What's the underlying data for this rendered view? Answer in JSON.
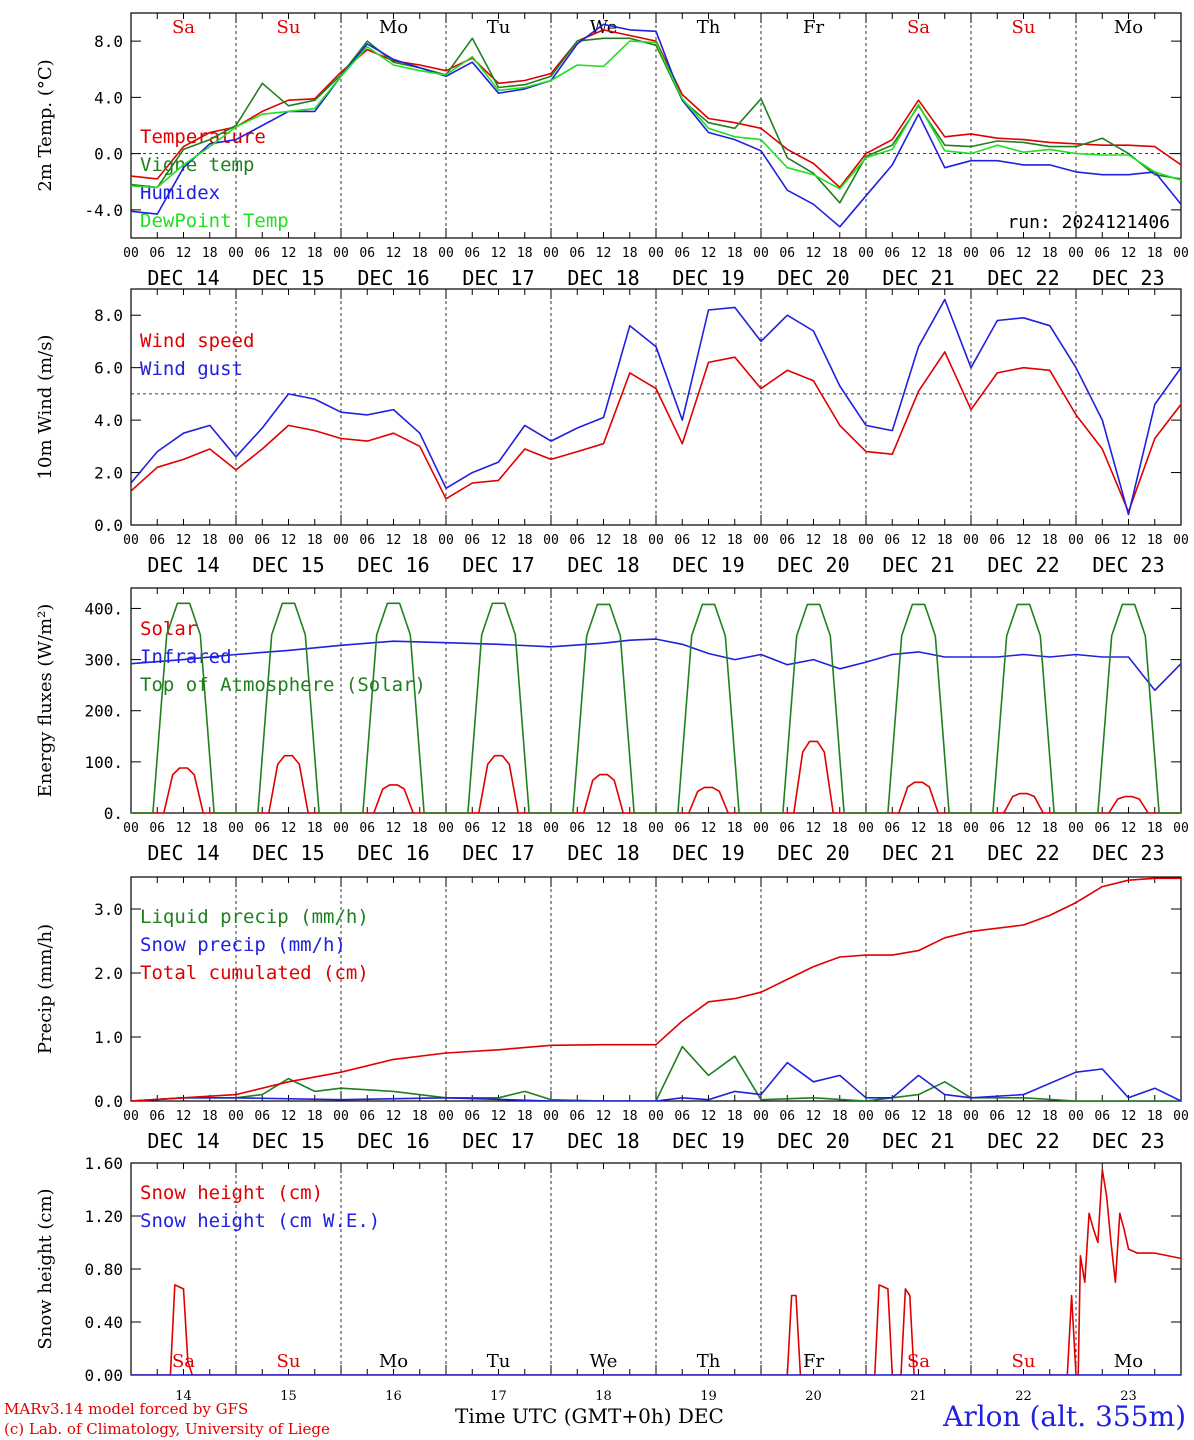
{
  "run_label": "run: 2024121406",
  "footer": {
    "credit_line1": "MARv3.14 model forced by GFS",
    "credit_line2": "(c) Lab. of Climatology, University of Liege",
    "axis_title": "Time UTC (GMT+0h) DEC",
    "station": "Arlon (alt. 355m)"
  },
  "colors": {
    "red": "#e00000",
    "green": "#208020",
    "blue": "#2020e0",
    "lightgreen": "#20e020"
  },
  "weekdays": [
    "Sa",
    "Su",
    "Mo",
    "Tu",
    "We",
    "Th",
    "Fr",
    "Sa",
    "Su",
    "Mo"
  ],
  "weekday_colors": [
    "red",
    "red",
    "black",
    "black",
    "black",
    "black",
    "black",
    "red",
    "red",
    "black"
  ],
  "date_labels": [
    "DEC 14",
    "DEC 15",
    "DEC 16",
    "DEC 17",
    "DEC 18",
    "DEC 19",
    "DEC 20",
    "DEC 21",
    "DEC 22",
    "DEC 23"
  ],
  "hour_ticks": [
    "00",
    "06",
    "12",
    "18"
  ],
  "bottom_day_numbers": [
    "14",
    "15",
    "16",
    "17",
    "18",
    "19",
    "20",
    "21",
    "22",
    "23"
  ],
  "chart_data": [
    {
      "type": "line",
      "ylabel": "2m Temp. (°C)",
      "ylim": [
        -6,
        10
      ],
      "yticks": [
        "-4.0",
        "0.0",
        "4.0",
        "8.0"
      ],
      "ytick_values": [
        -4,
        0,
        4,
        8
      ],
      "x_unit": "hours since DEC 14 00 UTC",
      "reference_line": 0,
      "series": [
        {
          "name": "Temperature",
          "color": "red",
          "x": [
            0,
            6,
            12,
            18,
            24,
            30,
            36,
            42,
            48,
            54,
            60,
            66,
            72,
            78,
            84,
            90,
            96,
            102,
            108,
            114,
            120,
            126,
            132,
            138,
            144,
            150,
            156,
            162,
            168,
            174,
            180,
            186,
            192,
            198,
            204,
            210,
            216,
            222,
            228,
            234,
            240
          ],
          "values": [
            -1.6,
            -1.8,
            0.5,
            1.5,
            1.9,
            3.0,
            3.8,
            3.9,
            5.8,
            7.4,
            6.6,
            6.3,
            5.9,
            6.8,
            5.0,
            5.2,
            5.7,
            8.0,
            8.8,
            8.4,
            8.0,
            4.2,
            2.5,
            2.2,
            1.8,
            0.3,
            -0.7,
            -2.4,
            0.0,
            1.0,
            3.8,
            1.2,
            1.4,
            1.1,
            1.0,
            0.8,
            0.7,
            0.6,
            0.6,
            0.5,
            -0.8
          ]
        },
        {
          "name": "Vigne temp",
          "color": "green",
          "x": [
            0,
            6,
            12,
            18,
            24,
            30,
            36,
            42,
            48,
            54,
            60,
            66,
            72,
            78,
            84,
            90,
            96,
            102,
            108,
            114,
            120,
            126,
            132,
            138,
            144,
            150,
            156,
            162,
            168,
            174,
            180,
            186,
            192,
            198,
            204,
            210,
            216,
            222,
            228,
            234,
            240
          ],
          "values": [
            -2.2,
            -2.4,
            0.3,
            1.0,
            2.0,
            5.0,
            3.4,
            3.8,
            5.6,
            8.0,
            6.5,
            6.1,
            5.6,
            8.2,
            4.7,
            4.9,
            5.5,
            8.0,
            8.2,
            8.2,
            7.7,
            3.8,
            2.2,
            1.8,
            3.9,
            -0.3,
            -1.4,
            -3.5,
            -0.2,
            0.6,
            3.4,
            0.6,
            0.5,
            0.9,
            0.8,
            0.5,
            0.5,
            1.1,
            0.0,
            -1.5,
            -1.8
          ]
        },
        {
          "name": "Humidex",
          "color": "blue",
          "x": [
            0,
            6,
            12,
            18,
            24,
            30,
            36,
            42,
            48,
            54,
            60,
            66,
            72,
            78,
            84,
            90,
            96,
            102,
            108,
            114,
            120,
            126,
            132,
            138,
            144,
            150,
            156,
            162,
            168,
            174,
            180,
            186,
            192,
            198,
            204,
            210,
            216,
            222,
            228,
            234,
            240
          ],
          "values": [
            -4.1,
            -4.3,
            -1.0,
            0.7,
            1.0,
            2.0,
            3.0,
            3.0,
            5.5,
            7.8,
            6.7,
            6.1,
            5.5,
            6.5,
            4.3,
            4.6,
            5.2,
            7.8,
            9.2,
            8.8,
            8.7,
            3.8,
            1.5,
            1.0,
            0.2,
            -2.6,
            -3.6,
            -5.2,
            -3.0,
            -0.8,
            2.8,
            -1.0,
            -0.5,
            -0.5,
            -0.8,
            -0.8,
            -1.3,
            -1.5,
            -1.5,
            -1.3,
            -3.6
          ]
        },
        {
          "name": "DewPoint Temp",
          "color": "lightgreen",
          "x": [
            0,
            6,
            12,
            18,
            24,
            30,
            36,
            42,
            48,
            54,
            60,
            66,
            72,
            78,
            84,
            90,
            96,
            102,
            108,
            114,
            120,
            126,
            132,
            138,
            144,
            150,
            156,
            162,
            168,
            174,
            180,
            186,
            192,
            198,
            204,
            210,
            216,
            222,
            228,
            234,
            240
          ],
          "values": [
            -2.3,
            -2.4,
            -0.8,
            0.5,
            1.9,
            2.8,
            3.0,
            3.2,
            5.5,
            7.6,
            6.3,
            5.9,
            5.6,
            6.9,
            4.5,
            4.7,
            5.2,
            6.3,
            6.2,
            8.0,
            7.9,
            3.9,
            1.8,
            1.2,
            1.0,
            -1.0,
            -1.5,
            -2.5,
            -0.3,
            0.3,
            3.5,
            0.2,
            0.0,
            0.6,
            0.1,
            0.3,
            0.0,
            -0.1,
            -0.1,
            -1.3,
            -1.9
          ]
        }
      ]
    },
    {
      "type": "line",
      "ylabel": "10m Wind (m/s)",
      "ylim": [
        0,
        9
      ],
      "yticks": [
        "0.0",
        "2.0",
        "4.0",
        "6.0",
        "8.0"
      ],
      "ytick_values": [
        0,
        2,
        4,
        6,
        8
      ],
      "x_unit": "hours since DEC 14 00 UTC",
      "reference_line": 5,
      "series": [
        {
          "name": "Wind speed",
          "color": "red",
          "x": [
            0,
            6,
            12,
            18,
            24,
            30,
            36,
            42,
            48,
            54,
            60,
            66,
            72,
            78,
            84,
            90,
            96,
            102,
            108,
            114,
            120,
            126,
            132,
            138,
            144,
            150,
            156,
            162,
            168,
            174,
            180,
            186,
            192,
            198,
            204,
            210,
            216,
            222,
            228,
            234,
            240
          ],
          "values": [
            1.3,
            2.2,
            2.5,
            2.9,
            2.1,
            2.9,
            3.8,
            3.6,
            3.3,
            3.2,
            3.5,
            3.0,
            1.0,
            1.6,
            1.7,
            2.9,
            2.5,
            2.8,
            3.1,
            5.8,
            5.2,
            3.1,
            6.2,
            6.4,
            5.2,
            5.9,
            5.5,
            3.8,
            2.8,
            2.7,
            5.1,
            6.6,
            4.4,
            5.8,
            6.0,
            5.9,
            4.2,
            2.9,
            0.5,
            3.3,
            4.6
          ]
        },
        {
          "name": "Wind gust",
          "color": "blue",
          "x": [
            0,
            6,
            12,
            18,
            24,
            30,
            36,
            42,
            48,
            54,
            60,
            66,
            72,
            78,
            84,
            90,
            96,
            102,
            108,
            114,
            120,
            126,
            132,
            138,
            144,
            150,
            156,
            162,
            168,
            174,
            180,
            186,
            192,
            198,
            204,
            210,
            216,
            222,
            228,
            234,
            240
          ],
          "values": [
            1.6,
            2.8,
            3.5,
            3.8,
            2.6,
            3.7,
            5.0,
            4.8,
            4.3,
            4.2,
            4.4,
            3.5,
            1.4,
            2.0,
            2.4,
            3.8,
            3.2,
            3.7,
            4.1,
            7.6,
            6.8,
            4.0,
            8.2,
            8.3,
            7.0,
            8.0,
            7.4,
            5.3,
            3.8,
            3.6,
            6.8,
            8.6,
            6.0,
            7.8,
            7.9,
            7.6,
            6.0,
            4.0,
            0.4,
            4.6,
            6.0
          ]
        }
      ]
    },
    {
      "type": "line",
      "ylabel": "Energy fluxes (W/m²)",
      "ylim": [
        0,
        440
      ],
      "yticks": [
        "0.",
        "100.",
        "200.",
        "300.",
        "400."
      ],
      "ytick_values": [
        0,
        100,
        200,
        300,
        400
      ],
      "x_unit": "hours since DEC 14 00 UTC",
      "series": [
        {
          "name": "Solar",
          "color": "red",
          "peak_hour": 12,
          "half_width_hours": 4.5,
          "daily_peaks": [
            88,
            112,
            55,
            112,
            75,
            50,
            140,
            60,
            38,
            32
          ]
        },
        {
          "name": "Infrared",
          "color": "blue",
          "x": [
            0,
            12,
            24,
            36,
            48,
            60,
            72,
            84,
            96,
            108,
            114,
            120,
            126,
            132,
            138,
            144,
            150,
            156,
            162,
            168,
            174,
            180,
            186,
            192,
            198,
            204,
            210,
            216,
            222,
            228,
            234,
            240
          ],
          "values": [
            292,
            300,
            310,
            318,
            328,
            336,
            333,
            330,
            325,
            332,
            338,
            340,
            330,
            312,
            300,
            310,
            290,
            300,
            282,
            295,
            310,
            315,
            305,
            305,
            305,
            310,
            305,
            310,
            305,
            305,
            240,
            292
          ]
        },
        {
          "name": "Top of Atmosphere (Solar)",
          "color": "green",
          "peak_hour": 12,
          "half_width_hours": 7,
          "daily_peaks": [
            410,
            410,
            410,
            410,
            408,
            408,
            408,
            408,
            408,
            408
          ]
        }
      ]
    },
    {
      "type": "line",
      "ylabel": "Precip (mm/h)",
      "ylim": [
        0,
        3.5
      ],
      "yticks": [
        "0.0",
        "1.0",
        "2.0",
        "3.0"
      ],
      "ytick_values": [
        0,
        1,
        2,
        3
      ],
      "x_unit": "hours since DEC 14 00 UTC",
      "series": [
        {
          "name": "Liquid precip (mm/h)",
          "color": "green",
          "x": [
            0,
            12,
            24,
            30,
            36,
            42,
            48,
            60,
            72,
            84,
            90,
            96,
            108,
            120,
            126,
            132,
            138,
            144,
            156,
            168,
            180,
            186,
            192,
            204,
            216,
            228,
            240
          ],
          "values": [
            0,
            0.05,
            0.05,
            0.1,
            0.35,
            0.15,
            0.2,
            0.15,
            0.05,
            0.05,
            0.15,
            0.02,
            0,
            0,
            0.85,
            0.4,
            0.7,
            0.02,
            0.05,
            0,
            0.1,
            0.3,
            0.05,
            0.05,
            0,
            0,
            0
          ]
        },
        {
          "name": "Snow precip (mm/h)",
          "color": "blue",
          "x": [
            0,
            12,
            24,
            48,
            72,
            96,
            108,
            120,
            126,
            132,
            138,
            144,
            150,
            156,
            162,
            168,
            174,
            180,
            186,
            192,
            204,
            216,
            222,
            228,
            234,
            240
          ],
          "values": [
            0,
            0.05,
            0.05,
            0.02,
            0.05,
            0,
            0,
            0,
            0.05,
            0.02,
            0.15,
            0.1,
            0.6,
            0.3,
            0.4,
            0.05,
            0.05,
            0.4,
            0.1,
            0.05,
            0.1,
            0.45,
            0.5,
            0.05,
            0.2,
            0
          ]
        },
        {
          "name": "Total cumulated (cm)",
          "color": "red",
          "x": [
            0,
            12,
            24,
            36,
            48,
            60,
            72,
            84,
            96,
            108,
            120,
            126,
            132,
            138,
            144,
            150,
            156,
            162,
            168,
            174,
            180,
            186,
            192,
            204,
            210,
            216,
            222,
            228,
            234,
            240
          ],
          "values": [
            0,
            0.05,
            0.1,
            0.3,
            0.45,
            0.65,
            0.75,
            0.8,
            0.87,
            0.88,
            0.88,
            1.25,
            1.55,
            1.6,
            1.7,
            1.9,
            2.1,
            2.25,
            2.28,
            2.28,
            2.35,
            2.55,
            2.65,
            2.75,
            2.9,
            3.1,
            3.35,
            3.45,
            3.48,
            3.48
          ]
        }
      ]
    },
    {
      "type": "line",
      "ylabel": "Snow height (cm)",
      "ylim": [
        0,
        1.6
      ],
      "yticks": [
        "0.00",
        "0.40",
        "0.80",
        "1.20",
        "1.60"
      ],
      "ytick_values": [
        0,
        0.4,
        0.8,
        1.2,
        1.6
      ],
      "x_unit": "hours since DEC 14 00 UTC",
      "series": [
        {
          "name": "Snow height (cm)",
          "color": "red",
          "x": [
            0,
            9,
            10,
            12,
            13,
            14,
            150,
            151,
            152,
            153,
            170,
            171,
            173,
            174,
            176,
            177,
            178,
            179,
            180,
            214,
            215,
            216,
            216.5,
            217,
            218,
            219,
            220,
            221,
            222,
            223,
            224,
            225,
            226,
            227,
            228,
            230,
            234,
            240
          ],
          "values": [
            0,
            0,
            0.68,
            0.65,
            0.1,
            0,
            0,
            0.6,
            0.6,
            0,
            0,
            0.68,
            0.65,
            0,
            0,
            0.65,
            0.6,
            0,
            0,
            0,
            0.6,
            0,
            0,
            0.9,
            0.7,
            1.22,
            1.1,
            1.0,
            1.55,
            1.35,
            1.0,
            0.7,
            1.22,
            1.1,
            0.95,
            0.92,
            0.92,
            0.88
          ]
        },
        {
          "name": "Snow height (cm W.E.)",
          "color": "blue",
          "x": [
            0,
            240
          ],
          "values": [
            0,
            0
          ]
        }
      ]
    }
  ]
}
